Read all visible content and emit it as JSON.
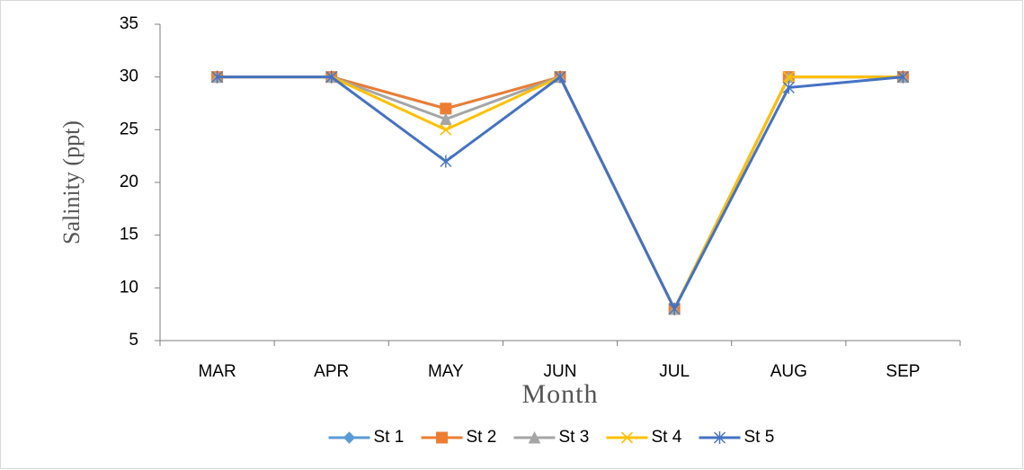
{
  "chart_data": {
    "type": "line",
    "y_label": "Salinity (ppt)",
    "x_label": "Month",
    "categories": [
      "MAR",
      "APR",
      "MAY",
      "JUN",
      "JUL",
      "AUG",
      "SEP"
    ],
    "series": [
      {
        "name": "St 1",
        "color": "#5b9bd5",
        "marker": "diamond",
        "values": [
          30,
          30,
          27,
          30,
          8,
          30,
          30
        ]
      },
      {
        "name": "St 2",
        "color": "#ed7d31",
        "marker": "square",
        "values": [
          30,
          30,
          27,
          30,
          8,
          30,
          30
        ]
      },
      {
        "name": "St 3",
        "color": "#a5a5a5",
        "marker": "triangle",
        "values": [
          30,
          30,
          26,
          30,
          8,
          30,
          30
        ]
      },
      {
        "name": "St 4",
        "color": "#ffc000",
        "marker": "x",
        "values": [
          30,
          30,
          25,
          30,
          8,
          30,
          30
        ]
      },
      {
        "name": "St 5",
        "color": "#4472c4",
        "marker": "star",
        "values": [
          30,
          30,
          22,
          30,
          8,
          29,
          30
        ]
      }
    ],
    "ylim": [
      5,
      35
    ],
    "yticks": [
      5,
      10,
      15,
      20,
      25,
      30,
      35
    ],
    "legend": "bottom"
  }
}
